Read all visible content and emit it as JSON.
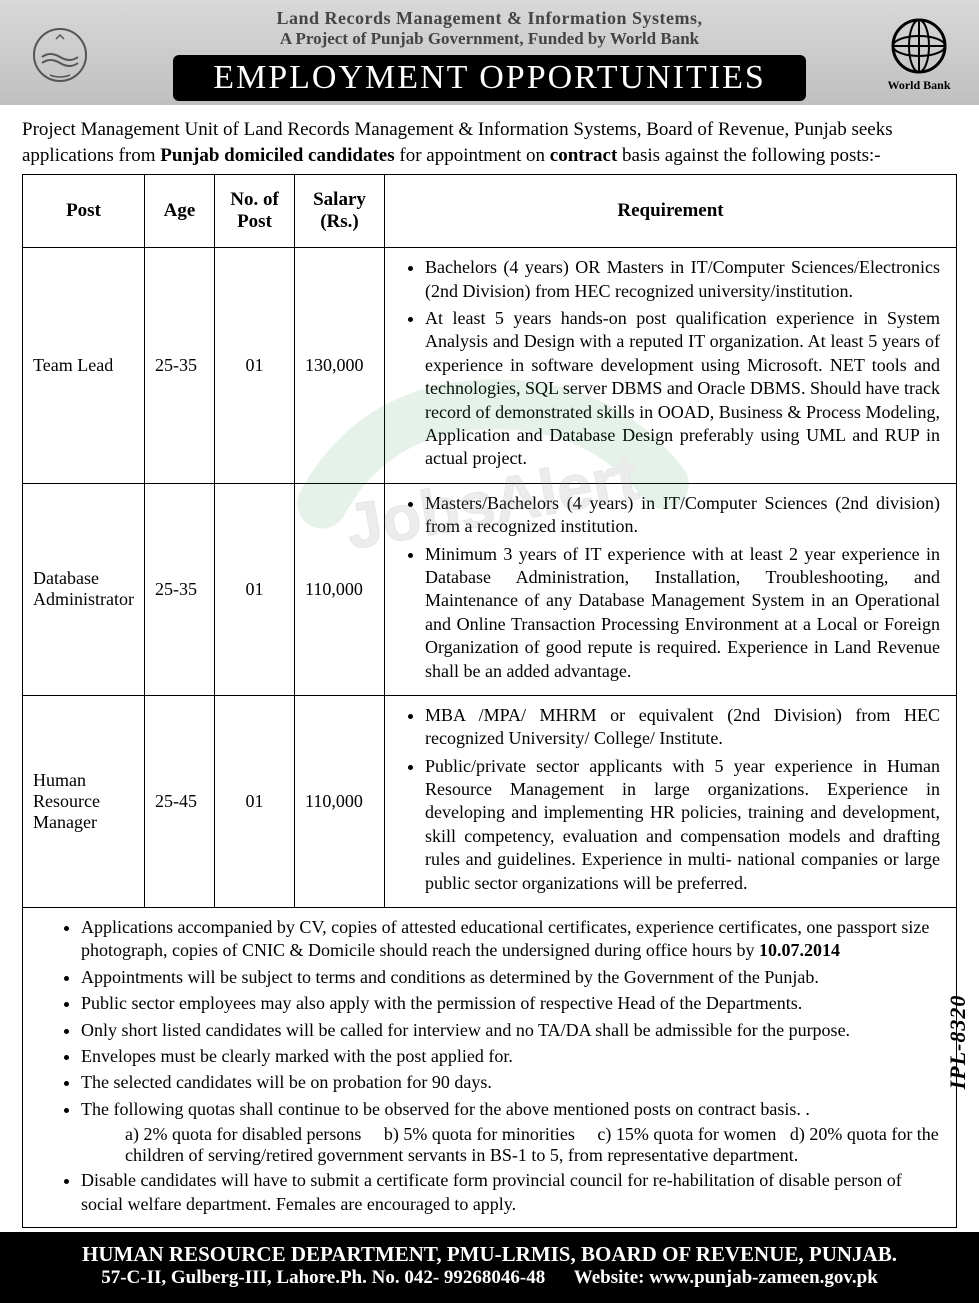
{
  "header": {
    "org_line1": "Land Records Management & Information Systems,",
    "org_line2": "A Project of Punjab Government, Funded by World Bank",
    "banner": "EMPLOYMENT OPPORTUNITIES",
    "right_label": "World Bank"
  },
  "intro": {
    "pre": "Project Management Unit of Land Records Management & Information Systems, Board of Revenue, Punjab seeks applications from ",
    "bold1": "Punjab domiciled candidates",
    "mid": " for appointment on ",
    "bold2": "contract",
    "post": " basis against the following posts:-"
  },
  "table": {
    "headers": {
      "post": "Post",
      "age": "Age",
      "no": "No. of Post",
      "salary": "Salary (Rs.)",
      "req": "Requirement"
    },
    "rows": [
      {
        "post": "Team Lead",
        "age": "25-35",
        "no": "01",
        "salary": "130,000",
        "req": [
          "Bachelors (4 years) OR Masters in IT/Computer Sciences/Electronics (2nd Division) from HEC recognized university/institution.",
          "At least 5 years hands-on post qualification experience in System Analysis and Design with a reputed IT organization. At least 5 years of experience in software development using Microsoft. NET tools and technologies, SQL server DBMS and Oracle DBMS. Should have track record of demonstrated skills in OOAD, Business & Process Modeling, Application and Database Design preferably using UML and RUP in actual project."
        ]
      },
      {
        "post": "Database Administrator",
        "age": "25-35",
        "no": "01",
        "salary": "110,000",
        "req": [
          "Masters/Bachelors (4 years) in IT/Computer Sciences (2nd division) from a recognized institution.",
          "Minimum 3 years of IT experience with at least 2 year experience in Database Administration, Installation, Troubleshooting, and Maintenance of any Database Management System in an Operational and Online Transaction Processing Environment at a Local or Foreign Organization of good repute is required. Experience in Land Revenue shall be an added advantage."
        ]
      },
      {
        "post": "Human Resource Manager",
        "age": "25-45",
        "no": "01",
        "salary": "110,000",
        "req": [
          "MBA /MPA/ MHRM or equivalent (2nd Division) from HEC recognized University/ College/ Institute.",
          "Public/private sector applicants with 5 year experience in Human Resource Management in large organizations. Experience in developing and implementing HR policies, training and development, skill competency, evaluation and compensation models and drafting rules and guidelines. Experience in multi- national companies or large public sector organizations will be preferred."
        ]
      }
    ]
  },
  "notes": {
    "items": [
      {
        "pre": "Applications accompanied by CV, copies of attested educational certificates, experience certificates, one passport size photograph, copies of CNIC & Domicile should reach the undersigned during office hours by ",
        "bold": "10.07.2014"
      },
      {
        "text": "Appointments will be subject to terms and conditions as determined by the Government of the Punjab."
      },
      {
        "text": "Public sector employees may also apply with the permission of respective Head of the Departments."
      },
      {
        "text": "Only short listed candidates will be called for interview and no TA/DA shall be admissible for the purpose."
      },
      {
        "text": "Envelopes must be clearly marked with the post applied for."
      },
      {
        "text": "The selected candidates will be on probation for 90 days."
      },
      {
        "text": "The following quotas shall continue to be observed for the above mentioned posts on contract basis. ."
      },
      {
        "sub": "a) 2% quota for disabled persons     b) 5% quota for minorities     c) 15% quota for women   d) 20% quota for the children of serving/retired government servants in BS-1 to 5, from representative department."
      },
      {
        "text": "Disable candidates will have to submit a certificate form provincial council for re-habilitation of disable person of social welfare department. Females are encouraged to apply."
      }
    ],
    "ipl": "IPL-8320"
  },
  "footer": {
    "line1": "HUMAN RESOURCE DEPARTMENT, PMU-LRMIS, BOARD OF REVENUE, PUNJAB.",
    "line2": "57-C-II, Gulberg-III, Lahore.Ph. No. 042- 99268046-48      Website: www.punjab-zameen.gov.pk"
  },
  "watermark_text": "JobsAlert"
}
